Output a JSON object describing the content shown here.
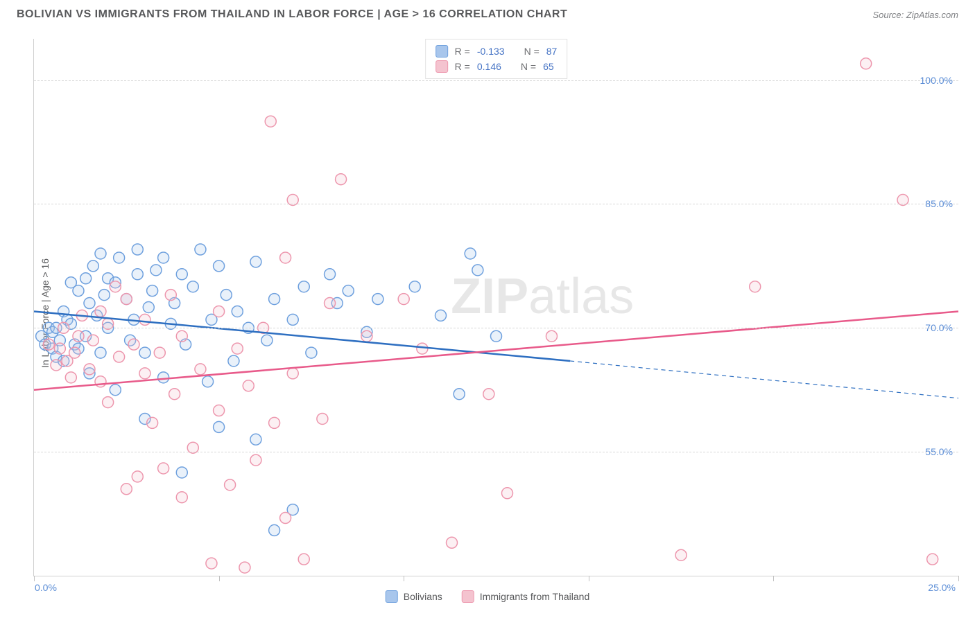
{
  "header": {
    "title": "BOLIVIAN VS IMMIGRANTS FROM THAILAND IN LABOR FORCE | AGE > 16 CORRELATION CHART",
    "source": "Source: ZipAtlas.com"
  },
  "watermark": {
    "zip": "ZIP",
    "atlas": "atlas"
  },
  "chart": {
    "type": "scatter",
    "ylabel": "In Labor Force | Age > 16",
    "xlim": [
      0,
      25
    ],
    "ylim": [
      40,
      105
    ],
    "x_ticks": [
      0,
      5,
      10,
      15,
      20,
      25
    ],
    "x_tick_labels": {
      "first": "0.0%",
      "last": "25.0%"
    },
    "y_ticks": [
      55,
      70,
      85,
      100
    ],
    "y_tick_labels": [
      "55.0%",
      "70.0%",
      "85.0%",
      "100.0%"
    ],
    "background_color": "#ffffff",
    "grid_color": "#d8d8d8",
    "axis_color": "#d0d0d0",
    "tick_label_color": "#5b8dd6",
    "marker_radius": 8,
    "marker_stroke_width": 1.5,
    "marker_fill_opacity": 0.25,
    "series": [
      {
        "name": "Bolivians",
        "key": "bolivians",
        "fill": "#a8c6ec",
        "stroke": "#6ea0de",
        "line_color": "#2e6fc1",
        "line_width": 2.5,
        "R": "-0.133",
        "N": "87",
        "trend": {
          "x1": 0,
          "y1": 72,
          "x2": 14.5,
          "y2": 66,
          "x2_dash": 25,
          "y2_dash": 61.5
        },
        "points": [
          [
            0.2,
            69
          ],
          [
            0.3,
            68
          ],
          [
            0.4,
            70
          ],
          [
            0.5,
            67.5
          ],
          [
            0.5,
            69.5
          ],
          [
            0.6,
            66.5
          ],
          [
            0.6,
            70
          ],
          [
            0.7,
            68.5
          ],
          [
            0.8,
            72
          ],
          [
            0.8,
            66
          ],
          [
            0.9,
            71
          ],
          [
            1.0,
            70.5
          ],
          [
            1.0,
            75.5
          ],
          [
            1.1,
            68
          ],
          [
            1.2,
            67.5
          ],
          [
            1.2,
            74.5
          ],
          [
            1.4,
            69
          ],
          [
            1.4,
            76
          ],
          [
            1.5,
            64.5
          ],
          [
            1.5,
            73
          ],
          [
            1.6,
            77.5
          ],
          [
            1.7,
            71.5
          ],
          [
            1.8,
            67
          ],
          [
            1.8,
            79
          ],
          [
            1.9,
            74
          ],
          [
            2.0,
            70
          ],
          [
            2.0,
            76
          ],
          [
            2.2,
            62.5
          ],
          [
            2.2,
            75.5
          ],
          [
            2.3,
            78.5
          ],
          [
            2.5,
            73.5
          ],
          [
            2.6,
            68.5
          ],
          [
            2.7,
            71
          ],
          [
            2.8,
            76.5
          ],
          [
            2.8,
            79.5
          ],
          [
            3.0,
            59
          ],
          [
            3.0,
            67
          ],
          [
            3.1,
            72.5
          ],
          [
            3.2,
            74.5
          ],
          [
            3.3,
            77
          ],
          [
            3.5,
            64
          ],
          [
            3.5,
            78.5
          ],
          [
            3.7,
            70.5
          ],
          [
            3.8,
            73
          ],
          [
            4.0,
            76.5
          ],
          [
            4.0,
            52.5
          ],
          [
            4.1,
            68
          ],
          [
            4.3,
            75
          ],
          [
            4.5,
            79.5
          ],
          [
            4.7,
            63.5
          ],
          [
            4.8,
            71
          ],
          [
            5.0,
            58
          ],
          [
            5.0,
            77.5
          ],
          [
            5.2,
            74
          ],
          [
            5.4,
            66
          ],
          [
            5.5,
            72
          ],
          [
            5.8,
            70
          ],
          [
            6.0,
            78
          ],
          [
            6.0,
            56.5
          ],
          [
            6.3,
            68.5
          ],
          [
            6.5,
            45.5
          ],
          [
            6.5,
            73.5
          ],
          [
            7.0,
            71
          ],
          [
            7.0,
            48
          ],
          [
            7.3,
            75
          ],
          [
            7.5,
            67
          ],
          [
            8.0,
            76.5
          ],
          [
            8.2,
            73
          ],
          [
            8.5,
            74.5
          ],
          [
            9.0,
            69.5
          ],
          [
            9.3,
            73.5
          ],
          [
            10.3,
            75
          ],
          [
            11.0,
            71.5
          ],
          [
            11.5,
            62
          ],
          [
            11.8,
            79
          ],
          [
            12.0,
            77
          ],
          [
            12.5,
            69
          ]
        ]
      },
      {
        "name": "Immigrants from Thailand",
        "key": "thailand",
        "fill": "#f4c3cf",
        "stroke": "#ed96ad",
        "line_color": "#e85a8a",
        "line_width": 2.5,
        "R": "0.146",
        "N": "65",
        "trend": {
          "x1": 0,
          "y1": 62.5,
          "x2": 25,
          "y2": 72
        },
        "points": [
          [
            0.4,
            68
          ],
          [
            0.6,
            65.5
          ],
          [
            0.7,
            67.5
          ],
          [
            0.8,
            70
          ],
          [
            0.9,
            66
          ],
          [
            1.0,
            64
          ],
          [
            1.1,
            67
          ],
          [
            1.2,
            69
          ],
          [
            1.3,
            71.5
          ],
          [
            1.5,
            65
          ],
          [
            1.6,
            68.5
          ],
          [
            1.8,
            63.5
          ],
          [
            1.8,
            72
          ],
          [
            2.0,
            61
          ],
          [
            2.0,
            70.5
          ],
          [
            2.2,
            75
          ],
          [
            2.3,
            66.5
          ],
          [
            2.5,
            50.5
          ],
          [
            2.5,
            73.5
          ],
          [
            2.7,
            68
          ],
          [
            2.8,
            52
          ],
          [
            3.0,
            64.5
          ],
          [
            3.0,
            71
          ],
          [
            3.2,
            58.5
          ],
          [
            3.4,
            67
          ],
          [
            3.5,
            53
          ],
          [
            3.7,
            74
          ],
          [
            3.8,
            62
          ],
          [
            4.0,
            49.5
          ],
          [
            4.0,
            69
          ],
          [
            4.3,
            55.5
          ],
          [
            4.5,
            65
          ],
          [
            4.8,
            41.5
          ],
          [
            5.0,
            60
          ],
          [
            5.0,
            72
          ],
          [
            5.3,
            51
          ],
          [
            5.5,
            67.5
          ],
          [
            5.7,
            41
          ],
          [
            5.8,
            63
          ],
          [
            6.0,
            54
          ],
          [
            6.2,
            70
          ],
          [
            6.4,
            95
          ],
          [
            6.5,
            58.5
          ],
          [
            6.8,
            47
          ],
          [
            6.8,
            78.5
          ],
          [
            7.0,
            64.5
          ],
          [
            7.0,
            85.5
          ],
          [
            7.3,
            42
          ],
          [
            7.8,
            59
          ],
          [
            8.0,
            73
          ],
          [
            8.3,
            88
          ],
          [
            9.0,
            69
          ],
          [
            10.0,
            73.5
          ],
          [
            10.5,
            67.5
          ],
          [
            11.3,
            44
          ],
          [
            12.3,
            62
          ],
          [
            12.8,
            50
          ],
          [
            14.0,
            69
          ],
          [
            17.5,
            42.5
          ],
          [
            19.5,
            75
          ],
          [
            22.5,
            102
          ],
          [
            23.5,
            85.5
          ],
          [
            24.3,
            42
          ]
        ]
      }
    ]
  },
  "correlation_legend": {
    "r_label": "R =",
    "n_label": "N ="
  },
  "bottom_legend": {
    "items": [
      "Bolivians",
      "Immigrants from Thailand"
    ]
  }
}
